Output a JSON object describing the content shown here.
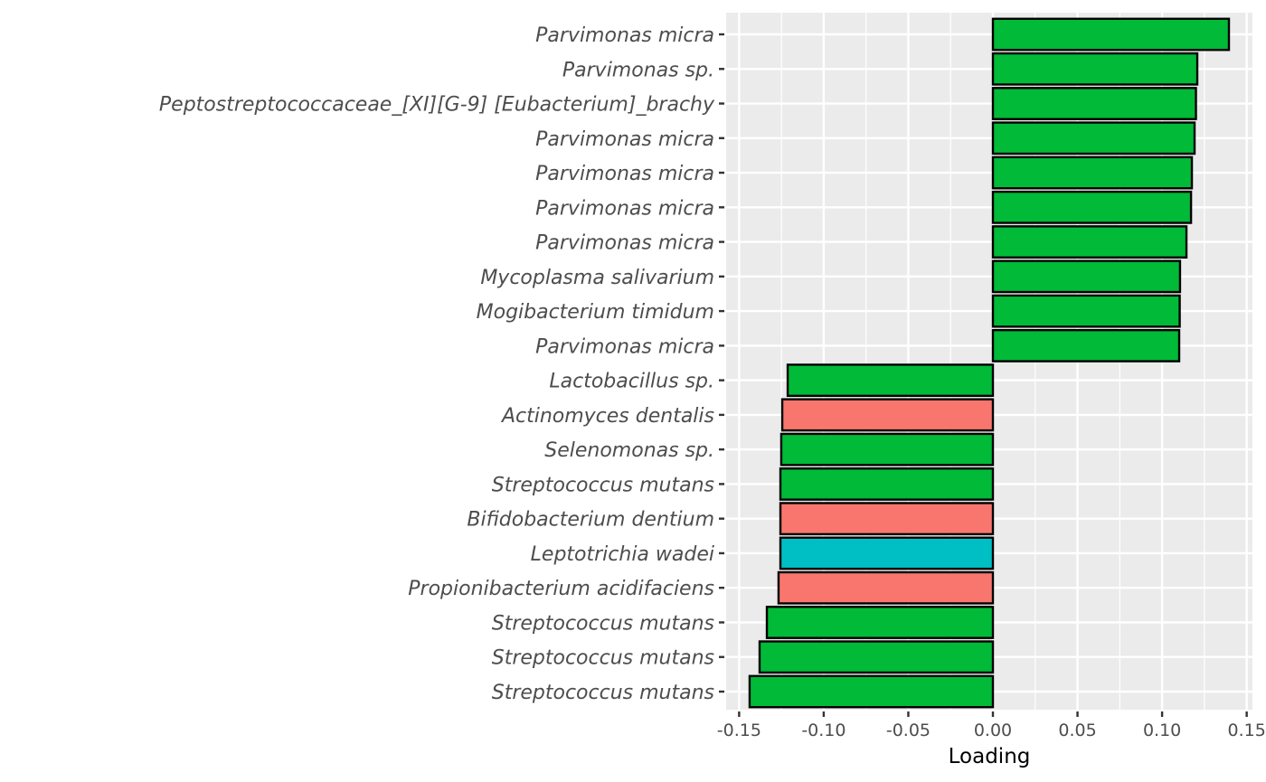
{
  "chart_data": {
    "type": "bar",
    "orientation": "horizontal",
    "title": "",
    "xlabel": "Loading",
    "ylabel": "",
    "xlim": [
      -0.155,
      0.155
    ],
    "xticks": [
      -0.15,
      -0.1,
      -0.05,
      0.0,
      0.05,
      0.1,
      0.15
    ],
    "xtick_labels": [
      "-0.15",
      "-0.10",
      "-0.05",
      "0.00",
      "0.05",
      "0.10",
      "0.15"
    ],
    "grid": true,
    "legend": "none",
    "categories": [
      "Parvimonas micra",
      "Parvimonas sp.",
      "Peptostreptococcaceae_[XI][G-9] [Eubacterium]_brachy",
      "Parvimonas micra",
      "Parvimonas micra",
      "Parvimonas micra",
      "Parvimonas micra",
      "Mycoplasma salivarium",
      "Mogibacterium timidum",
      "Parvimonas micra",
      "Lactobacillus sp.",
      "Actinomyces dentalis",
      "Selenomonas sp.",
      "Streptococcus mutans",
      "Bifidobacterium dentium",
      "Leptotrichia wadei",
      "Propionibacterium acidifaciens",
      "Streptococcus mutans",
      "Streptococcus mutans",
      "Streptococcus mutans"
    ],
    "values": [
      0.1395,
      0.1208,
      0.12,
      0.1192,
      0.1176,
      0.1171,
      0.1144,
      0.1106,
      0.1104,
      0.1101,
      -0.1213,
      -0.1245,
      -0.1251,
      -0.1256,
      -0.1256,
      -0.1256,
      -0.1267,
      -0.1336,
      -0.1379,
      -0.1438
    ],
    "fill_groups": [
      "green",
      "green",
      "green",
      "green",
      "green",
      "green",
      "green",
      "green",
      "green",
      "green",
      "green",
      "red",
      "green",
      "green",
      "red",
      "cyan",
      "red",
      "green",
      "green",
      "green"
    ],
    "palette": {
      "green": "#00BA38",
      "red": "#F8766D",
      "cyan": "#00BFC4"
    },
    "panel_bg": "#EBEBEB",
    "grid_color": "#FFFFFF",
    "bar_outline": "#000000"
  }
}
